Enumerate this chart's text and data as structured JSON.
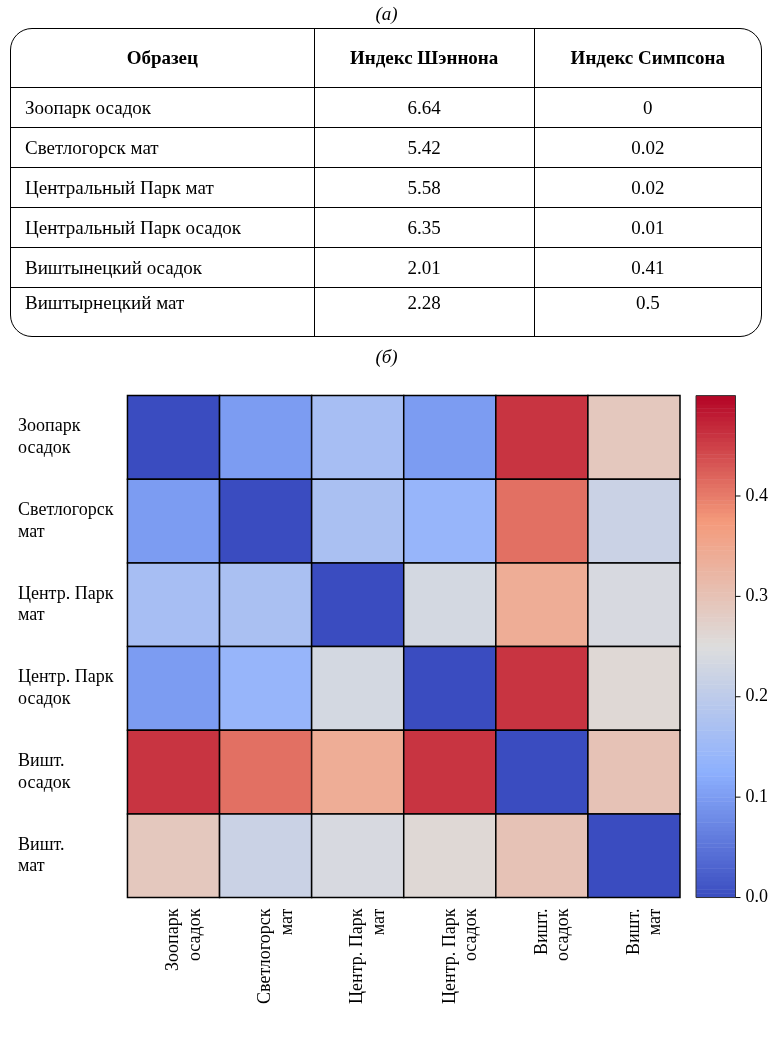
{
  "chart_data": [
    {
      "type": "heatmap",
      "title": "(a)",
      "ylabel": "Образец",
      "categories": [
        "Индекс Шэннона",
        "Индекс Симпсона"
      ],
      "y_categories": [
        "Зоопарк осадок",
        "Светлогорск мат",
        "Центральный Парк мат",
        "Центральный Парк осадок",
        "Виштынецкий осадок",
        "Виштырнецкий мат"
      ],
      "cells": [
        [
          6.64,
          0
        ],
        [
          5.42,
          0.02
        ],
        [
          5.58,
          0.02
        ],
        [
          6.35,
          0.01
        ],
        [
          2.01,
          0.41
        ],
        [
          2.28,
          0.5
        ]
      ],
      "data_labels": true
    },
    {
      "type": "heatmap",
      "title": "(б)",
      "categories": [
        "Зоопарк осадок",
        "Светлогорск мат",
        "Центр. Парк мат",
        "Центр. Парк осадок",
        "Вишт. осадок",
        "Вишт. мат"
      ],
      "y_categories": [
        "Зоопарк осадок",
        "Светлогорск мат",
        "Центр. Парк мат",
        "Центр. Парк осадок",
        "Вишт. осадок",
        "Вишт. мат"
      ],
      "cells": [
        [
          0,
          0.1,
          0.165,
          0.1,
          0.46,
          0.29
        ],
        [
          0.1,
          0,
          0.17,
          0.14,
          0.41,
          0.22
        ],
        [
          0.165,
          0.17,
          0,
          0.235,
          0.34,
          0.24
        ],
        [
          0.1,
          0.14,
          0.235,
          0,
          0.46,
          0.26
        ],
        [
          0.46,
          0.41,
          0.34,
          0.46,
          0,
          0.3
        ],
        [
          0.29,
          0.22,
          0.24,
          0.26,
          0.3,
          0
        ]
      ],
      "clim": [
        0,
        0.5
      ],
      "cticks": [
        {
          "value": 0,
          "label": "0.0"
        },
        {
          "value": 0.1,
          "label": "0.1"
        },
        {
          "value": 0.2,
          "label": "0.2"
        },
        {
          "value": 0.3,
          "label": "0.3"
        },
        {
          "value": 0.4,
          "label": "0.4"
        }
      ]
    }
  ]
}
